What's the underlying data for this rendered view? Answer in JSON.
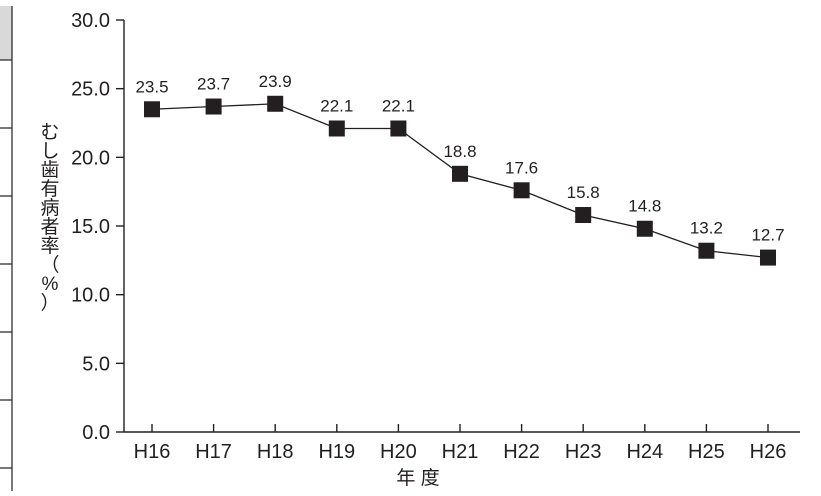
{
  "chart_data": {
    "type": "line",
    "categories": [
      "H16",
      "H17",
      "H18",
      "H19",
      "H20",
      "H21",
      "H22",
      "H23",
      "H24",
      "H25",
      "H26"
    ],
    "series": [
      {
        "values": [
          23.5,
          23.7,
          23.9,
          22.1,
          22.1,
          18.8,
          17.6,
          15.8,
          14.8,
          13.2,
          12.7
        ]
      }
    ],
    "data_labels": [
      "23.5",
      "23.7",
      "23.9",
      "22.1",
      "22.1",
      "18.8",
      "17.6",
      "15.8",
      "14.8",
      "13.2",
      "12.7"
    ],
    "yticks": [
      "0.0",
      "5.0",
      "10.0",
      "15.0",
      "20.0",
      "25.0",
      "30.0"
    ],
    "ylim": [
      0,
      30
    ],
    "xlabel": "年 度",
    "ylabel": "むし歯有病者率（%）",
    "ylabel_chars": [
      "む",
      "し",
      "歯",
      "有",
      "病",
      "者",
      "率",
      "（",
      "%",
      "）"
    ],
    "grid": false,
    "marker": "square",
    "colors": {
      "line": "#231f20",
      "marker": "#231f20",
      "axis": "#231f20",
      "side_panel": "#d9d9d9"
    }
  }
}
